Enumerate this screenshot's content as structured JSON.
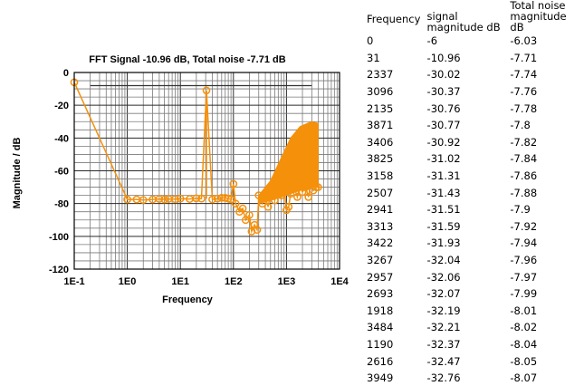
{
  "chart_data": {
    "type": "scatter",
    "title": "FFT Signal -10.96 dB, Total noise -7.71 dB",
    "xlabel": "Frequency",
    "ylabel": "Magnitude / dB",
    "x_scale": "log",
    "xlim": [
      0.1,
      10000
    ],
    "ylim": [
      -120,
      0
    ],
    "x_tick_labels": [
      "1E-1",
      "1E0",
      "1E1",
      "1E2",
      "1E3",
      "1E4"
    ],
    "y_tick_labels": [
      "0",
      "-20",
      "-40",
      "-60",
      "-80",
      "-100",
      "-120"
    ],
    "grid": true,
    "reference_line_y": -8,
    "series": [
      {
        "color": "#f5900a",
        "points": [
          [
            0.1,
            -6
          ],
          [
            1,
            -77.5
          ],
          [
            1.5,
            -77.5
          ],
          [
            2,
            -77.8
          ],
          [
            3,
            -77.5
          ],
          [
            4,
            -77.2
          ],
          [
            5,
            -77.5
          ],
          [
            6,
            -77.2
          ],
          [
            8,
            -77.3
          ],
          [
            10,
            -77
          ],
          [
            15,
            -77.2
          ],
          [
            20,
            -76.8
          ],
          [
            25,
            -77
          ],
          [
            31,
            -10.96
          ],
          [
            40,
            -77.5
          ],
          [
            50,
            -77
          ],
          [
            60,
            -76.5
          ],
          [
            70,
            -76.5
          ],
          [
            80,
            -77
          ],
          [
            90,
            -77.5
          ],
          [
            100,
            -68
          ],
          [
            110,
            -80
          ],
          [
            130,
            -85
          ],
          [
            150,
            -83
          ],
          [
            170,
            -90
          ],
          [
            200,
            -87
          ],
          [
            220,
            -97
          ],
          [
            250,
            -93
          ],
          [
            280,
            -96
          ],
          [
            300,
            -75
          ],
          [
            350,
            -80
          ],
          [
            400,
            -76
          ],
          [
            450,
            -82
          ],
          [
            500,
            -74
          ],
          [
            600,
            -78
          ],
          [
            700,
            -72
          ],
          [
            800,
            -75
          ],
          [
            900,
            -70
          ],
          [
            1000,
            -84
          ],
          [
            1100,
            -82
          ],
          [
            1200,
            -74
          ],
          [
            1400,
            -70
          ],
          [
            1600,
            -76
          ],
          [
            1800,
            -68
          ],
          [
            2000,
            -73
          ],
          [
            2300,
            -70
          ],
          [
            2600,
            -76
          ],
          [
            2900,
            -66
          ],
          [
            3200,
            -72
          ],
          [
            3600,
            -70
          ],
          [
            3949,
            -70
          ]
        ],
        "band": {
          "x": [
            300,
            500,
            800,
            1200,
            1800,
            2500,
            3000,
            3949
          ],
          "upper": [
            -75,
            -66,
            -52,
            -40,
            -33,
            -31,
            -30,
            -31
          ],
          "lower": [
            -80,
            -78,
            -76,
            -74,
            -72,
            -71,
            -70,
            -70
          ]
        }
      }
    ]
  },
  "table": {
    "headers": {
      "frequency": "Frequency",
      "signal": "signal magnitude dB",
      "noise": "Total noise magnitude dB"
    },
    "rows": [
      [
        "0",
        "-6",
        "-6.03"
      ],
      [
        "31",
        "-10.96",
        "-7.71"
      ],
      [
        "2337",
        "-30.02",
        "-7.74"
      ],
      [
        "3096",
        "-30.37",
        "-7.76"
      ],
      [
        "2135",
        "-30.76",
        "-7.78"
      ],
      [
        "3871",
        "-30.77",
        "-7.8"
      ],
      [
        "3406",
        "-30.92",
        "-7.82"
      ],
      [
        "3825",
        "-31.02",
        "-7.84"
      ],
      [
        "3158",
        "-31.31",
        "-7.86"
      ],
      [
        "2507",
        "-31.43",
        "-7.88"
      ],
      [
        "2941",
        "-31.51",
        "-7.9"
      ],
      [
        "3313",
        "-31.59",
        "-7.92"
      ],
      [
        "3422",
        "-31.93",
        "-7.94"
      ],
      [
        "3267",
        "-32.04",
        "-7.96"
      ],
      [
        "2957",
        "-32.06",
        "-7.97"
      ],
      [
        "2693",
        "-32.07",
        "-7.99"
      ],
      [
        "1918",
        "-32.19",
        "-8.01"
      ],
      [
        "3484",
        "-32.21",
        "-8.02"
      ],
      [
        "1190",
        "-32.37",
        "-8.04"
      ],
      [
        "2616",
        "-32.47",
        "-8.05"
      ],
      [
        "3949",
        "-32.76",
        "-8.07"
      ]
    ]
  }
}
